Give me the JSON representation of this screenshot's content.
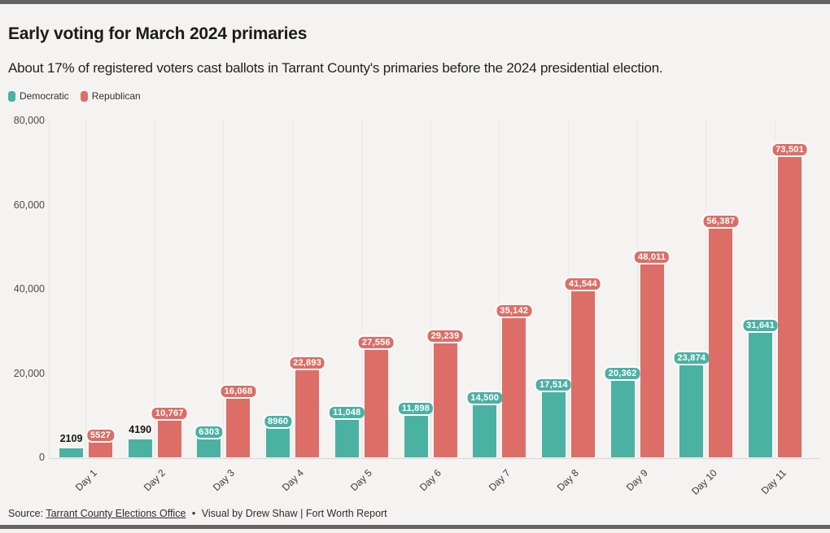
{
  "page": {
    "background": "#F4F3F1",
    "accent_bar_color": "#646464"
  },
  "header": {
    "title": "Early voting for March 2024 primaries",
    "subtitle": "About 17% of registered voters cast ballots in Tarrant County's primaries before the 2024 presidential election."
  },
  "legend": [
    {
      "label": "Democratic",
      "color": "#4BB1A3"
    },
    {
      "label": "Republican",
      "color": "#DC6E67"
    }
  ],
  "chart_data": {
    "type": "bar",
    "title": "Early voting for March 2024 primaries",
    "categories": [
      "Day 1",
      "Day 2",
      "Day 3",
      "Day 4",
      "Day 5",
      "Day 6",
      "Day 7",
      "Day 8",
      "Day 9",
      "Day 10",
      "Day 11"
    ],
    "series": [
      {
        "name": "Democratic",
        "color": "#4BB1A3",
        "values": [
          2109,
          4190,
          6303,
          8960,
          11048,
          11898,
          14500,
          17514,
          20362,
          23874,
          31641
        ],
        "labels": [
          "2109",
          "4190",
          "6303",
          "8960",
          "11,048",
          "11,898",
          "14,500",
          "17,514",
          "20,362",
          "23,874",
          "31,641"
        ]
      },
      {
        "name": "Republican",
        "color": "#DC6E67",
        "values": [
          5527,
          10767,
          16068,
          22893,
          27556,
          29239,
          35142,
          41544,
          48011,
          56387,
          73501
        ],
        "labels": [
          "5527",
          "10,767",
          "16,068",
          "22,893",
          "27,556",
          "29,239",
          "35,142",
          "41,544",
          "48,011",
          "56,387",
          "73,501"
        ]
      }
    ],
    "ylim": [
      0,
      80000
    ],
    "yticks": [
      0,
      20000,
      40000,
      60000,
      80000
    ],
    "ytick_labels": [
      "0",
      "20,000",
      "40,000",
      "60,000",
      "80,000"
    ],
    "grid": "vertical-per-category",
    "legend_position": "top-left",
    "value_labels": "on"
  },
  "footer": {
    "source_prefix": "Source:",
    "source_link": "Tarrant County Elections Office",
    "separator": "•",
    "credit": "Visual by Drew Shaw | Fort Worth Report"
  }
}
